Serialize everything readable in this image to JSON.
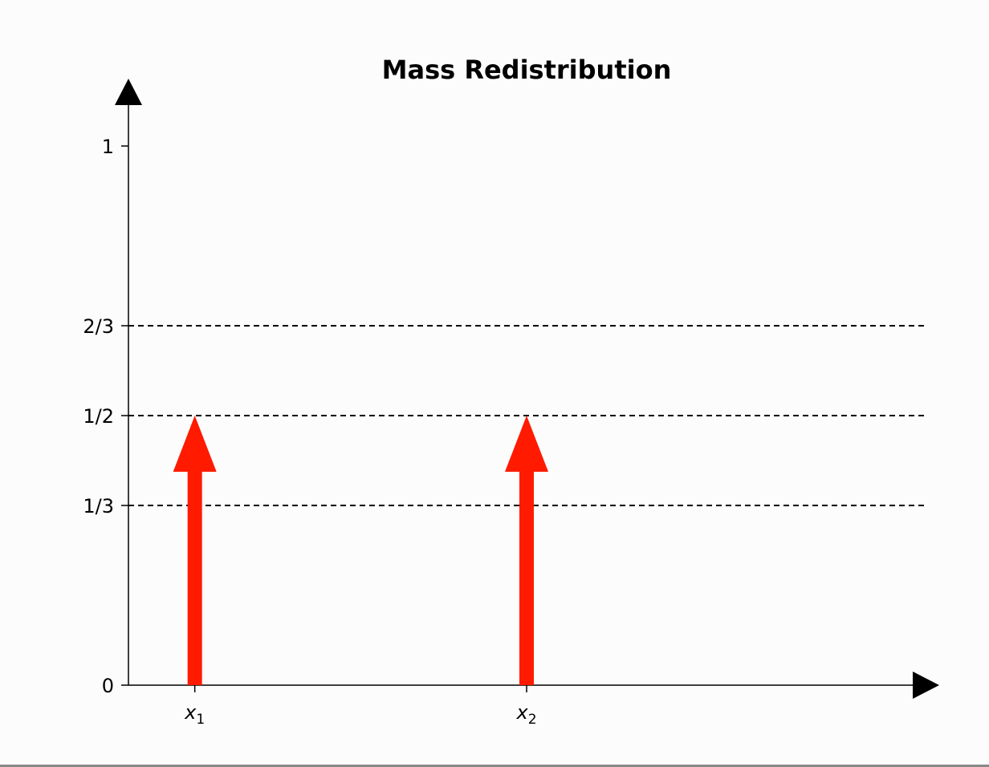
{
  "chart_data": {
    "type": "stem",
    "title": "Mass Redistribution",
    "xlabel": "",
    "ylabel": "",
    "x_ticks": [
      {
        "value": 1,
        "base": "x",
        "sub": "1"
      },
      {
        "value": 2,
        "base": "x",
        "sub": "2"
      }
    ],
    "y_ticks": [
      {
        "value": 0,
        "label": "0"
      },
      {
        "value": 0.3333,
        "label": "1/3"
      },
      {
        "value": 0.5,
        "label": "1/2"
      },
      {
        "value": 0.6667,
        "label": "2/3"
      },
      {
        "value": 1,
        "label": "1"
      }
    ],
    "reference_lines": [
      {
        "y": 0.3333,
        "style": "dashed",
        "color": "#000000"
      },
      {
        "y": 0.5,
        "style": "dashed",
        "color": "#000000"
      },
      {
        "y": 0.6667,
        "style": "dashed",
        "color": "#000000"
      }
    ],
    "points": [
      {
        "x": 1,
        "y": 0.5
      },
      {
        "x": 2,
        "y": 0.5
      }
    ],
    "xlim": [
      0.8,
      3.2
    ],
    "ylim": [
      0,
      1.12
    ],
    "arrow_color": "#ff1a00",
    "axis_color": "#000000",
    "grid": false
  }
}
